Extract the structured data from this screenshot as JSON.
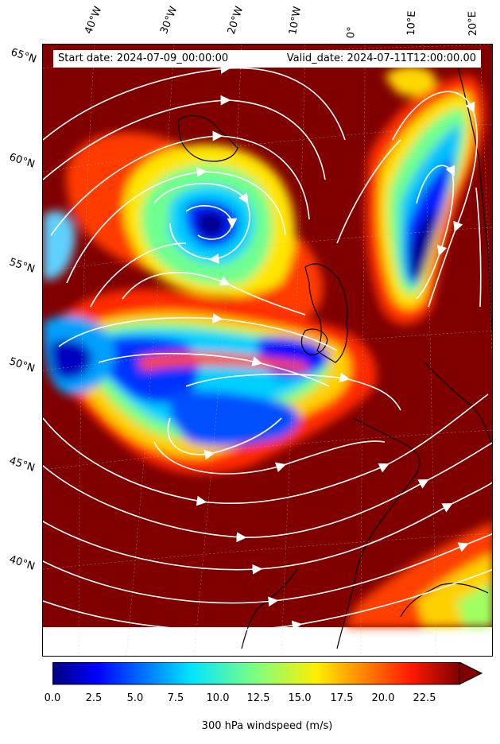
{
  "header": {
    "start": "Start date: 2024-07-09_00:00:00",
    "valid": "Valid_date: 2024-07-11T12:00:00.00"
  },
  "lon_labels": [
    "40°W",
    "30°W",
    "20°W",
    "10°W",
    "0°",
    "10°E",
    "20°E"
  ],
  "lat_labels": [
    "65°N",
    "60°N",
    "55°N",
    "50°N",
    "45°N",
    "40°N"
  ],
  "colorbar": {
    "ticks": [
      "0.0",
      "2.5",
      "5.0",
      "7.5",
      "10.0",
      "12.5",
      "15.0",
      "17.5",
      "20.0",
      "22.5"
    ],
    "label": "300 hPa windspeed (m/s)",
    "min": 0,
    "max": 25,
    "extend": "max",
    "colormap": "jet"
  },
  "colors": {
    "jet_dark_red": "#800000",
    "jet_red": "#ff0000",
    "jet_yellow": "#ffee00",
    "jet_green": "#7fff7f",
    "jet_cyan": "#00d4ff",
    "jet_blue": "#0000ff",
    "jet_dark_blue": "#00007f",
    "streamline": "#ffffff",
    "coast": "#000000"
  }
}
